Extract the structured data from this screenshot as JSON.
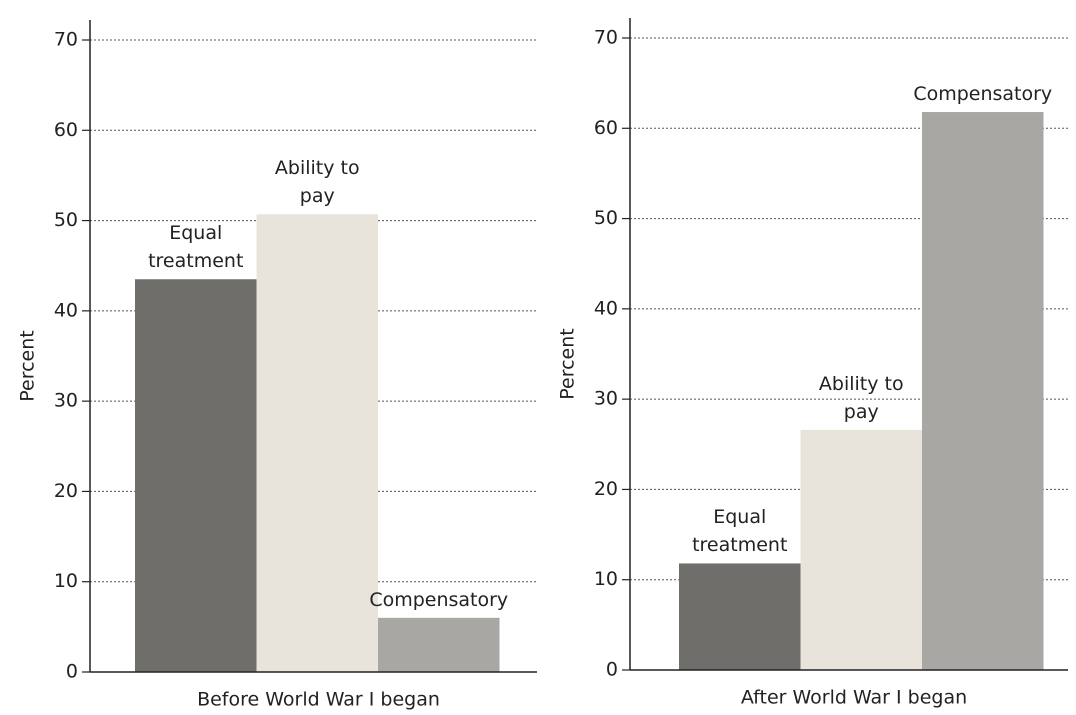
{
  "chart_data": [
    {
      "type": "bar",
      "xlabel": "Before World War I began",
      "ylabel": "Percent",
      "categories": [
        "Equal treatment",
        "Ability to pay",
        "Compensatory"
      ],
      "values": [
        43.5,
        50.7,
        6
      ],
      "colors": [
        "#6f6e6b",
        "#e8e4dc",
        "#a9a7a3"
      ],
      "ylim": [
        0,
        70
      ],
      "yticks": [
        0,
        10,
        20,
        30,
        40,
        50,
        60,
        70
      ],
      "grid": true
    },
    {
      "type": "bar",
      "xlabel": "After World War I began",
      "ylabel": "Percent",
      "categories": [
        "Equal treatment",
        "Ability to pay",
        "Compensatory"
      ],
      "values": [
        11.8,
        26.6,
        61.8
      ],
      "colors": [
        "#6f6e6b",
        "#e8e4dc",
        "#a9a7a3"
      ],
      "ylim": [
        0,
        70
      ],
      "yticks": [
        0,
        10,
        20,
        30,
        40,
        50,
        60,
        70
      ],
      "grid": true
    }
  ]
}
